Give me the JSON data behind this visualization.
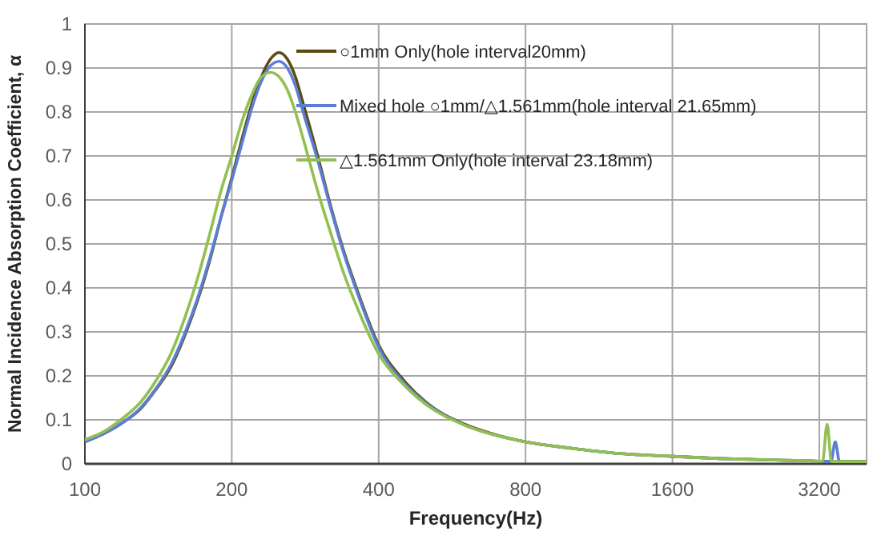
{
  "chart_data": {
    "type": "line",
    "xlabel": "Frequency(Hz)",
    "ylabel": "Normal Incidence Absorption Coefficient, α",
    "log": "x",
    "xlim": [
      100,
      4000
    ],
    "xticks": [
      100,
      200,
      400,
      800,
      1600,
      3200
    ],
    "ylim": [
      0,
      1
    ],
    "yticks": [
      0,
      0.1,
      0.2,
      0.3,
      0.4,
      0.5,
      0.6,
      0.7,
      0.8,
      0.9,
      1
    ],
    "grid": true,
    "legend": "top",
    "line_style": "solid",
    "series": [
      {
        "name": "○1mm Only(hole interval20mm)",
        "color": "#5b4a10",
        "x": [
          100,
          110,
          120,
          130,
          140,
          150,
          160,
          170,
          180,
          190,
          200,
          210,
          220,
          230,
          240,
          250,
          260,
          270,
          280,
          300,
          320,
          340,
          360,
          400,
          450,
          500,
          600,
          700,
          800,
          1000,
          1200,
          1600,
          2000,
          2500,
          3000,
          3200,
          3600,
          4000
        ],
        "values": [
          0.05,
          0.07,
          0.095,
          0.125,
          0.17,
          0.22,
          0.29,
          0.37,
          0.46,
          0.56,
          0.65,
          0.74,
          0.82,
          0.88,
          0.92,
          0.935,
          0.92,
          0.88,
          0.82,
          0.7,
          0.58,
          0.48,
          0.4,
          0.27,
          0.19,
          0.14,
          0.09,
          0.065,
          0.05,
          0.035,
          0.025,
          0.017,
          0.012,
          0.009,
          0.007,
          0.006,
          0.005,
          0.005
        ]
      },
      {
        "name": "Mixed hole ○1mm/△1.561mm(hole interval 21.65mm)",
        "color": "#5b7fd6",
        "x": [
          100,
          110,
          120,
          130,
          140,
          150,
          160,
          170,
          180,
          190,
          200,
          210,
          220,
          230,
          240,
          250,
          260,
          270,
          280,
          300,
          320,
          340,
          360,
          400,
          450,
          500,
          600,
          700,
          800,
          1000,
          1200,
          1600,
          2000,
          2500,
          3000,
          3200,
          3380,
          3450,
          3520,
          3600,
          4000
        ],
        "values": [
          0.05,
          0.07,
          0.095,
          0.127,
          0.172,
          0.225,
          0.295,
          0.375,
          0.465,
          0.56,
          0.645,
          0.73,
          0.81,
          0.87,
          0.905,
          0.915,
          0.9,
          0.86,
          0.8,
          0.69,
          0.575,
          0.475,
          0.395,
          0.265,
          0.185,
          0.138,
          0.088,
          0.064,
          0.05,
          0.035,
          0.025,
          0.017,
          0.012,
          0.009,
          0.007,
          0.006,
          0.005,
          0.05,
          0.005,
          0.005,
          0.005
        ]
      },
      {
        "name": "△1.561mm Only(hole interval 23.18mm)",
        "color": "#92c050",
        "x": [
          100,
          110,
          120,
          130,
          140,
          150,
          160,
          170,
          180,
          190,
          200,
          210,
          220,
          230,
          240,
          250,
          260,
          270,
          280,
          300,
          320,
          340,
          360,
          400,
          450,
          500,
          600,
          700,
          800,
          1000,
          1200,
          1600,
          2000,
          2500,
          3000,
          3250,
          3320,
          3390,
          3600,
          4000
        ],
        "values": [
          0.055,
          0.075,
          0.105,
          0.14,
          0.19,
          0.25,
          0.33,
          0.42,
          0.52,
          0.62,
          0.7,
          0.78,
          0.84,
          0.88,
          0.89,
          0.88,
          0.85,
          0.8,
          0.74,
          0.62,
          0.52,
          0.43,
          0.36,
          0.25,
          0.18,
          0.135,
          0.088,
          0.064,
          0.05,
          0.035,
          0.025,
          0.017,
          0.012,
          0.009,
          0.007,
          0.006,
          0.09,
          0.005,
          0.005,
          0.005
        ]
      }
    ]
  }
}
